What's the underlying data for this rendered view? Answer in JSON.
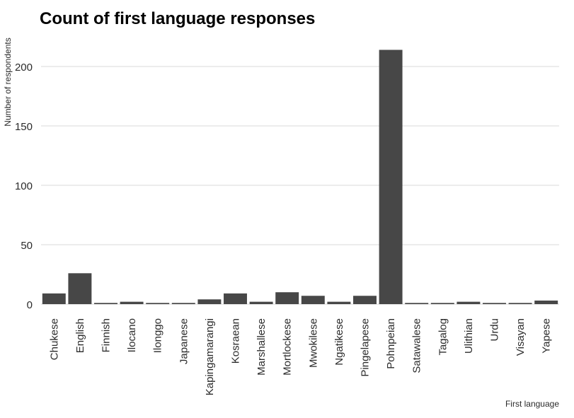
{
  "chart_data": {
    "type": "bar",
    "title": "Count of first language responses",
    "xlabel": "First language",
    "ylabel": "Number of respondents",
    "ylim": [
      0,
      220
    ],
    "yticks": [
      0,
      50,
      100,
      150,
      200
    ],
    "grid": true,
    "categories": [
      "Chukese",
      "English",
      "Finnish",
      "Ilocano",
      "Ilonggo",
      "Japanese",
      "Kapingamarangi",
      "Kosraean",
      "Marshallese",
      "Mortlockese",
      "Mwokilese",
      "Ngatikese",
      "Pingelapese",
      "Pohnpeian",
      "Satawalese",
      "Tagalog",
      "Ulithian",
      "Urdu",
      "Visayan",
      "Yapese"
    ],
    "values": [
      9,
      26,
      1,
      2,
      1,
      1,
      4,
      9,
      2,
      10,
      7,
      2,
      7,
      214,
      1,
      1,
      2,
      1,
      1,
      3
    ],
    "colors": {
      "bar": "#474747",
      "grid": "#d9d9d9",
      "text": "#2b2b2b",
      "title": "#000000"
    }
  }
}
